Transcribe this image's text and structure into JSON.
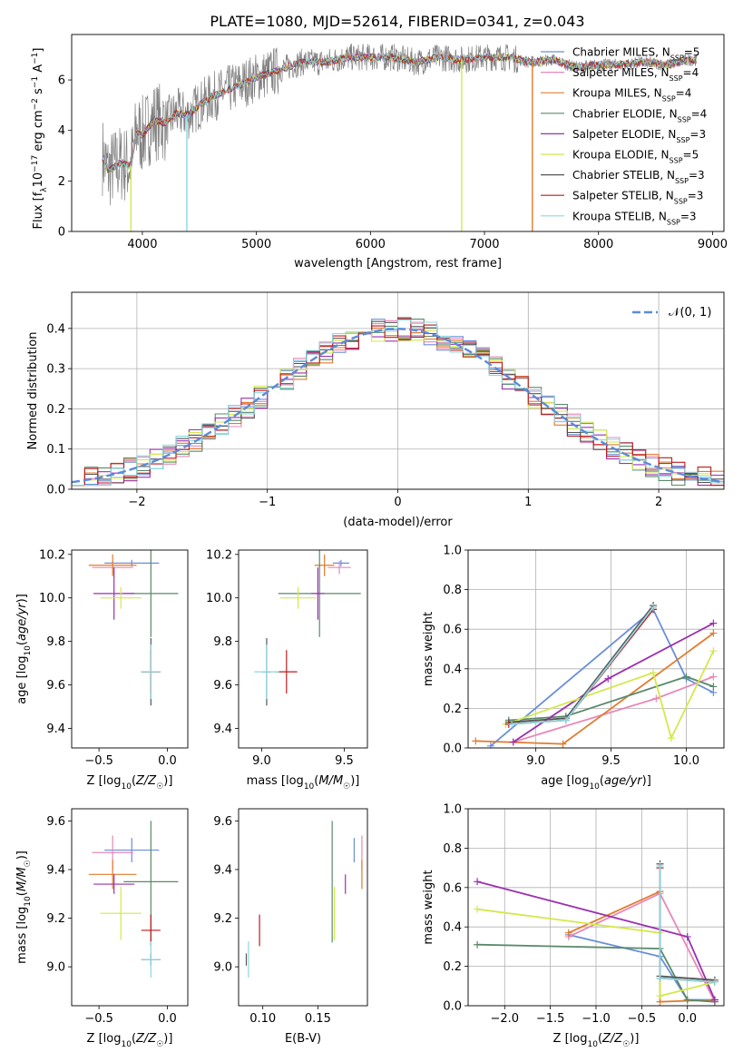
{
  "figure_title": "PLATE=1080, MJD=52614, FIBERID=0341, z=0.043",
  "chart_data": [
    {
      "id": "spectrum",
      "type": "line",
      "title": "PLATE=1080, MJD=52614, FIBERID=0341, z=0.043",
      "xlabel": "wavelength [Angstrom, rest frame]",
      "ylabel": "Flux [f_λ10^-17 erg cm^-2 s^-1 A^-1]",
      "xlim": [
        3380,
        9100
      ],
      "ylim": [
        0,
        7.8
      ],
      "xticks": [
        4000,
        5000,
        6000,
        7000,
        8000,
        9000
      ],
      "yticks": [
        0,
        2,
        4,
        6
      ],
      "legend_position": "top-right",
      "data_color": "#808080",
      "legend": [
        {
          "name": "Chabrier MILES, N_SSP=5",
          "main": "Chabrier MILES, N",
          "sub": "SSP",
          "post": "=5",
          "color": "#6a8fd8"
        },
        {
          "name": "Salpeter MILES, N_SSP=4",
          "main": "Salpeter MILES, N",
          "sub": "SSP",
          "post": "=4",
          "color": "#e888b8"
        },
        {
          "name": "Kroupa MILES, N_SSP=4",
          "main": "Kroupa MILES, N",
          "sub": "SSP",
          "post": "=4",
          "color": "#e07b2e"
        },
        {
          "name": "Chabrier ELODIE, N_SSP=4",
          "main": "Chabrier ELODIE, N",
          "sub": "SSP",
          "post": "=4",
          "color": "#5a8a6a"
        },
        {
          "name": "Salpeter ELODIE, N_SSP=3",
          "main": "Salpeter ELODIE, N",
          "sub": "SSP",
          "post": "=3",
          "color": "#9b30b0"
        },
        {
          "name": "Kroupa ELODIE, N_SSP=5",
          "main": "Kroupa ELODIE, N",
          "sub": "SSP",
          "post": "=5",
          "color": "#d4e84a"
        },
        {
          "name": "Chabrier STELIB, N_SSP=3",
          "main": "Chabrier STELIB, N",
          "sub": "SSP",
          "post": "=3",
          "color": "#555555"
        },
        {
          "name": "Salpeter STELIB, N_SSP=3",
          "main": "Salpeter STELIB, N",
          "sub": "SSP",
          "post": "=3",
          "color": "#c0191c"
        },
        {
          "name": "Kroupa STELIB, N_SSP=3",
          "main": "Kroupa STELIB, N",
          "sub": "SSP",
          "post": "=3",
          "color": "#8ad8e0"
        }
      ],
      "model_continuum": {
        "x": [
          3650,
          3700,
          3800,
          3900,
          3950,
          4000,
          4100,
          4200,
          4300,
          4400,
          4500,
          4600,
          4700,
          4800,
          4900,
          5000,
          5200,
          5400,
          5600,
          5800,
          6000,
          6200,
          6400,
          6600,
          6800,
          7000,
          7200,
          7400,
          7600,
          7800,
          8000,
          8200,
          8400,
          8600,
          8800
        ],
        "y": [
          3.0,
          2.4,
          2.7,
          2.6,
          4.0,
          3.8,
          4.4,
          4.3,
          4.7,
          4.6,
          5.0,
          5.3,
          5.5,
          5.7,
          5.9,
          6.1,
          6.4,
          6.7,
          6.7,
          6.9,
          6.9,
          6.9,
          6.7,
          6.9,
          6.8,
          6.9,
          6.9,
          6.7,
          6.8,
          6.5,
          6.6,
          6.6,
          6.7,
          6.6,
          6.8
        ]
      },
      "dropouts": [
        {
          "x": 3900,
          "color": "#d4e84a"
        },
        {
          "x": 4390,
          "color": "#8ad8e0"
        },
        {
          "x": 6800,
          "color": "#d4e84a"
        },
        {
          "x": 7420,
          "color": "#e07b2e"
        }
      ]
    },
    {
      "id": "residuals",
      "type": "histogram",
      "xlabel": "(data-model)/error",
      "ylabel": "Normed distribution",
      "xlim": [
        -2.5,
        2.5
      ],
      "ylim": [
        0,
        0.49
      ],
      "xticks": [
        -2,
        -1,
        0,
        1,
        2
      ],
      "yticks": [
        0.0,
        0.1,
        0.2,
        0.3,
        0.4
      ],
      "grid": true,
      "legend_position": "top-right",
      "gaussian_label": "𝒩(0, 1)",
      "gaussian_color": "#5b8bd9",
      "bin_width": 0.1,
      "bin_start": -2.5,
      "base_values": [
        0.03,
        0.035,
        0.04,
        0.045,
        0.05,
        0.055,
        0.06,
        0.07,
        0.09,
        0.1,
        0.12,
        0.13,
        0.15,
        0.16,
        0.18,
        0.2,
        0.22,
        0.24,
        0.25,
        0.27,
        0.3,
        0.33,
        0.35,
        0.35,
        0.33,
        0.35,
        0.37,
        0.38,
        0.4,
        0.38,
        0.36,
        0.38,
        0.39,
        0.37,
        0.36,
        0.34,
        0.33,
        0.32,
        0.3,
        0.29,
        0.28,
        0.24,
        0.22,
        0.2,
        0.18,
        0.16,
        0.14,
        0.13,
        0.11,
        0.1,
        0.08,
        0.07,
        0.06,
        0.05,
        0.045,
        0.04,
        0.035,
        0.03,
        0.03,
        0.025,
        0.03,
        0.03,
        0.03,
        0.025,
        0.03,
        0.03,
        0.03,
        0.03,
        0.03,
        0.03,
        0.03,
        0.03,
        0.03,
        0.03,
        0.03,
        0.03,
        0.03,
        0.03,
        0.03,
        0.03,
        0.03,
        0.03,
        0.03,
        0.03,
        0.03,
        0.03,
        0.03,
        0.03,
        0.03,
        0.03,
        0.03,
        0.03,
        0.03,
        0.03,
        0.03,
        0.03,
        0.03,
        0.03,
        0.03,
        0.03
      ]
    },
    {
      "id": "age-vs-Z",
      "type": "errorbar",
      "xlabel": "Z [log10(Z/Z☉)]",
      "ylabel": "age [log10(age/yr)]",
      "xlim": [
        -0.7,
        0.15
      ],
      "ylim": [
        9.31,
        10.22
      ],
      "xticks": [
        -0.5,
        0.0
      ],
      "yticks": [
        9.4,
        9.6,
        9.8,
        10.0,
        10.2
      ]
    },
    {
      "id": "age-vs-mass",
      "type": "errorbar",
      "xlabel": "mass [log10(M/M☉)]",
      "ylabel": "",
      "xlim": [
        8.86,
        9.64
      ],
      "ylim": [
        9.31,
        10.22
      ],
      "xticks": [
        9.0,
        9.5
      ],
      "yticks": [
        9.4,
        9.6,
        9.8,
        10.0,
        10.2
      ]
    },
    {
      "id": "massweight-vs-age",
      "type": "line",
      "xlabel": "age [log10(age/yr)]",
      "ylabel": "mass weight",
      "xlim": [
        8.55,
        10.25
      ],
      "ylim": [
        0,
        1.0
      ],
      "xticks": [
        9.0,
        9.5,
        10.0
      ],
      "yticks": [
        0.0,
        0.2,
        0.4,
        0.6,
        0.8,
        1.0
      ],
      "grid": true,
      "series": [
        {
          "color": "#6a8fd8",
          "x": [
            8.7,
            9.78,
            10.0,
            10.18
          ],
          "y": [
            0.01,
            0.7,
            0.35,
            0.28
          ]
        },
        {
          "color": "#e888b8",
          "x": [
            8.85,
            9.8,
            10.18
          ],
          "y": [
            0.03,
            0.25,
            0.36
          ]
        },
        {
          "color": "#e07b2e",
          "x": [
            8.6,
            9.18,
            10.18
          ],
          "y": [
            0.035,
            0.02,
            0.58
          ]
        },
        {
          "color": "#5a8a6a",
          "x": [
            8.82,
            9.2,
            10.0,
            10.18
          ],
          "y": [
            0.14,
            0.16,
            0.36,
            0.31
          ]
        },
        {
          "color": "#9b30b0",
          "x": [
            8.85,
            9.48,
            10.18
          ],
          "y": [
            0.03,
            0.35,
            0.63
          ]
        },
        {
          "color": "#d4e84a",
          "x": [
            8.8,
            9.78,
            9.9,
            10.18
          ],
          "y": [
            0.12,
            0.38,
            0.05,
            0.49
          ]
        },
        {
          "color": "#555555",
          "x": [
            8.82,
            9.2,
            9.78
          ],
          "y": [
            0.13,
            0.15,
            0.72
          ]
        },
        {
          "color": "#c0191c",
          "x": [
            8.82,
            9.2,
            9.78
          ],
          "y": [
            0.12,
            0.14,
            0.7
          ]
        },
        {
          "color": "#8ad8e0",
          "x": [
            8.84,
            9.2,
            9.78
          ],
          "y": [
            0.12,
            0.14,
            0.71
          ]
        }
      ]
    },
    {
      "id": "mass-vs-Z",
      "type": "errorbar",
      "xlabel": "Z [log10(Z/Z☉)]",
      "ylabel": "mass [log10(M/M☉)]",
      "xlim": [
        -0.7,
        0.15
      ],
      "ylim": [
        8.84,
        9.65
      ],
      "xticks": [
        -0.5,
        0.0
      ],
      "yticks": [
        9.0,
        9.2,
        9.4,
        9.6
      ]
    },
    {
      "id": "mass-vs-EBV",
      "type": "errorbar",
      "xlabel": "E(B-V)",
      "ylabel": "",
      "xlim": [
        0.078,
        0.195
      ],
      "ylim": [
        8.84,
        9.65
      ],
      "xticks": [
        0.1,
        0.15
      ],
      "yticks": [
        9.0,
        9.2,
        9.4,
        9.6
      ]
    },
    {
      "id": "massweight-vs-Z",
      "type": "line",
      "xlabel": "Z [log10(Z/Z☉)]",
      "ylabel": "mass weight",
      "xlim": [
        -2.4,
        0.4
      ],
      "ylim": [
        0,
        1.0
      ],
      "xticks": [
        -2.0,
        -1.5,
        -1.0,
        -0.5,
        0.0
      ],
      "yticks": [
        0.0,
        0.2,
        0.4,
        0.6,
        0.8,
        1.0
      ],
      "grid": true,
      "series": [
        {
          "color": "#6a8fd8",
          "x": [
            -1.3,
            -0.3,
            0.0,
            0.3
          ],
          "y": [
            0.36,
            0.25,
            0.03,
            0.03
          ]
        },
        {
          "color": "#e888b8",
          "x": [
            -1.3,
            -0.3,
            0.3
          ],
          "y": [
            0.35,
            0.57,
            0.02
          ]
        },
        {
          "color": "#e07b2e",
          "x": [
            -1.3,
            -0.3,
            -0.3,
            0.3
          ],
          "y": [
            0.37,
            0.58,
            0.02,
            0.03
          ]
        },
        {
          "color": "#5a8a6a",
          "x": [
            -2.3,
            -0.3,
            0.0,
            0.3
          ],
          "y": [
            0.31,
            0.29,
            0.03,
            0.02
          ]
        },
        {
          "color": "#9b30b0",
          "x": [
            -2.3,
            0.0,
            0.3
          ],
          "y": [
            0.63,
            0.35,
            0.03
          ]
        },
        {
          "color": "#d4e84a",
          "x": [
            -2.3,
            -0.3,
            -0.3,
            0.3
          ],
          "y": [
            0.49,
            0.37,
            0.05,
            0.12
          ]
        },
        {
          "color": "#555555",
          "x": [
            -0.3,
            -0.3,
            0.3
          ],
          "y": [
            0.72,
            0.15,
            0.13
          ]
        },
        {
          "color": "#c0191c",
          "x": [
            -0.3,
            -0.3,
            0.3
          ],
          "y": [
            0.7,
            0.14,
            0.12
          ]
        },
        {
          "color": "#8ad8e0",
          "x": [
            -0.3,
            -0.3,
            0.3
          ],
          "y": [
            0.71,
            0.14,
            0.12
          ]
        }
      ]
    }
  ],
  "errorbars": [
    {
      "color": "#6a8fd8",
      "Z": -0.26,
      "Z_err": 0.4,
      "age": 10.16,
      "age_err": 0.03,
      "mass": 9.48,
      "mass_err": 0.1,
      "ebv": 0.183
    },
    {
      "color": "#e888b8",
      "Z": -0.4,
      "Z_err": 0.3,
      "age": 10.14,
      "age_err": 0.06,
      "mass": 9.47,
      "mass_err": 0.14,
      "ebv": 0.19
    },
    {
      "color": "#e07b2e",
      "Z": -0.4,
      "Z_err": 0.35,
      "age": 10.15,
      "age_err": 0.1,
      "mass": 9.38,
      "mass_err": 0.12,
      "ebv": 0.19
    },
    {
      "color": "#5a8a6a",
      "Z": -0.12,
      "Z_err": 0.4,
      "age": 10.02,
      "age_err": 0.4,
      "mass": 9.35,
      "mass_err": 0.5,
      "ebv": 0.163
    },
    {
      "color": "#9b30b0",
      "Z": -0.39,
      "Z_err": 0.3,
      "age": 10.02,
      "age_err": 0.24,
      "mass": 9.34,
      "mass_err": 0.08,
      "ebv": 0.175
    },
    {
      "color": "#d4e84a",
      "Z": -0.34,
      "Z_err": 0.3,
      "age": 10.0,
      "age_err": 0.1,
      "mass": 9.22,
      "mass_err": 0.22,
      "ebv": 0.165
    },
    {
      "color": "#555555",
      "Z": -0.12,
      "Z_err": 0.14,
      "age": 9.66,
      "age_err": 0.31,
      "mass": 9.03,
      "mass_err": 0.05,
      "ebv": 0.085
    },
    {
      "color": "#c0191c",
      "Z": -0.12,
      "Z_err": 0.14,
      "age": 9.66,
      "age_err": 0.2,
      "mass": 9.15,
      "mass_err": 0.13,
      "ebv": 0.097
    },
    {
      "color": "#8ad8e0",
      "Z": -0.12,
      "Z_err": 0.14,
      "age": 9.66,
      "age_err": 0.25,
      "mass": 9.03,
      "mass_err": 0.15,
      "ebv": 0.087
    }
  ]
}
